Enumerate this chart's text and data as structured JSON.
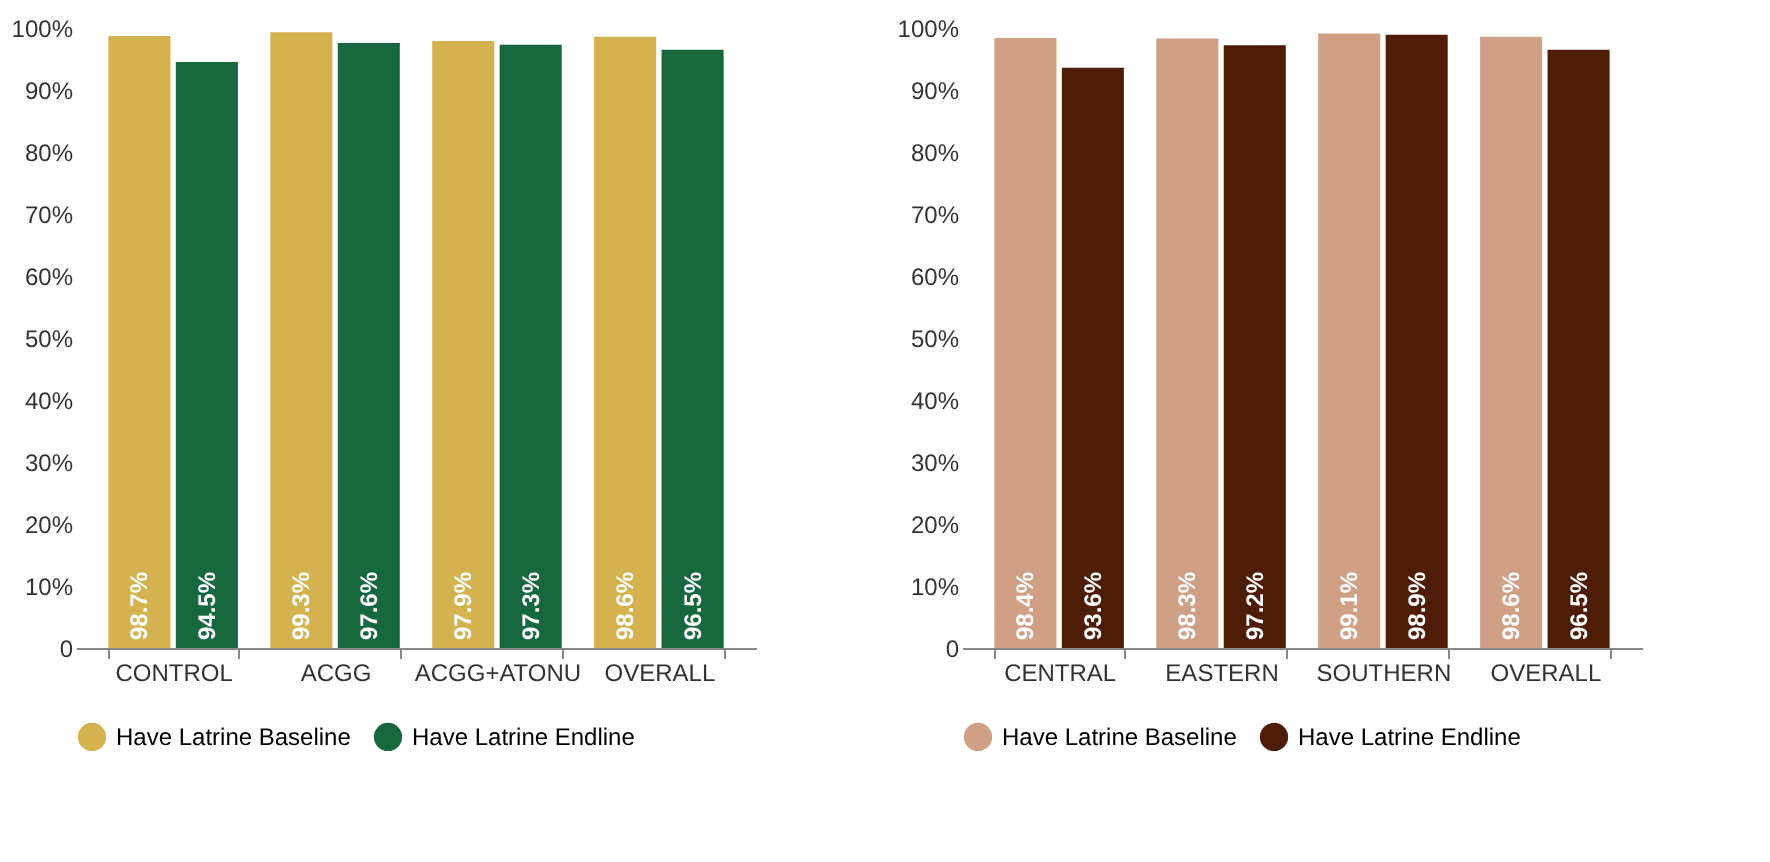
{
  "chart_data": [
    {
      "type": "bar",
      "categories": [
        "CONTROL",
        "ACGG",
        "ACGG+ATONU",
        "OVERALL"
      ],
      "series": [
        {
          "name": "Have Latrine Baseline",
          "color": "#d4b24f",
          "values": [
            98.7,
            99.3,
            97.9,
            98.6
          ],
          "value_labels": [
            "98.7%",
            "99.3%",
            "97.9%",
            "98.6%"
          ]
        },
        {
          "name": "Have Latrine Endline",
          "color": "#17673f",
          "values": [
            94.5,
            97.6,
            97.3,
            96.5
          ],
          "value_labels": [
            "94.5%",
            "97.6%",
            "97.3%",
            "96.5%"
          ]
        }
      ],
      "ylim": [
        0,
        100
      ],
      "yticks": [
        {
          "value": 0,
          "label": "0"
        },
        {
          "value": 10,
          "label": "10%"
        },
        {
          "value": 20,
          "label": "20%"
        },
        {
          "value": 30,
          "label": "30%"
        },
        {
          "value": 40,
          "label": "40%"
        },
        {
          "value": 50,
          "label": "50%"
        },
        {
          "value": 60,
          "label": "60%"
        },
        {
          "value": 70,
          "label": "70%"
        },
        {
          "value": 80,
          "label": "80%"
        },
        {
          "value": 90,
          "label": "90%"
        },
        {
          "value": 100,
          "label": "100%"
        }
      ],
      "grid": false,
      "legend": "bottom"
    },
    {
      "type": "bar",
      "categories": [
        "CENTRAL",
        "EASTERN",
        "SOUTHERN",
        "OVERALL"
      ],
      "series": [
        {
          "name": "Have Latrine Baseline",
          "color": "#cf9f86",
          "values": [
            98.4,
            98.3,
            99.1,
            98.6
          ],
          "value_labels": [
            "98.4%",
            "98.3%",
            "99.1%",
            "98.6%"
          ]
        },
        {
          "name": "Have Latrine Endline",
          "color": "#4e1d08",
          "values": [
            93.6,
            97.2,
            98.9,
            96.5
          ],
          "value_labels": [
            "93.6%",
            "97.2%",
            "98.9%",
            "96.5%"
          ]
        }
      ],
      "ylim": [
        0,
        100
      ],
      "yticks": [
        {
          "value": 0,
          "label": "0"
        },
        {
          "value": 10,
          "label": "10%"
        },
        {
          "value": 20,
          "label": "20%"
        },
        {
          "value": 30,
          "label": "30%"
        },
        {
          "value": 40,
          "label": "40%"
        },
        {
          "value": 50,
          "label": "50%"
        },
        {
          "value": 60,
          "label": "60%"
        },
        {
          "value": 70,
          "label": "70%"
        },
        {
          "value": 80,
          "label": "80%"
        },
        {
          "value": 90,
          "label": "90%"
        },
        {
          "value": 100,
          "label": "100%"
        }
      ],
      "grid": false,
      "legend": "bottom"
    }
  ]
}
